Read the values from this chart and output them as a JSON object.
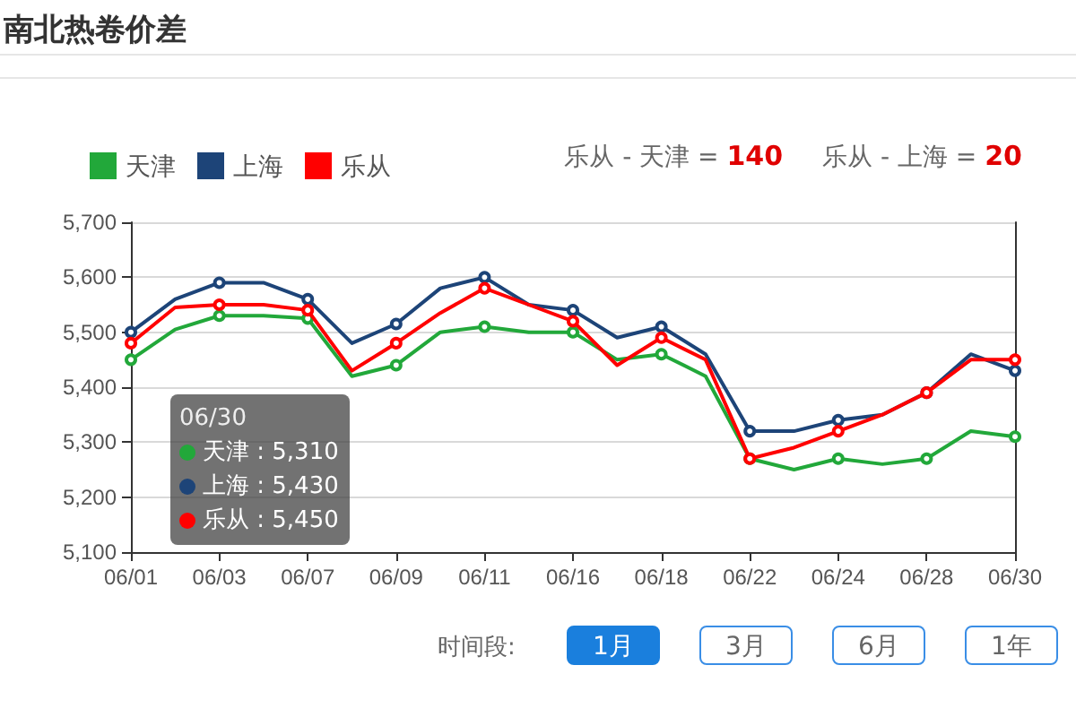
{
  "chart_data": {
    "type": "line",
    "title": "南北热卷价差",
    "categories": [
      "06/01",
      null,
      "06/03",
      null,
      "06/07",
      null,
      "06/09",
      null,
      "06/11",
      null,
      "06/16",
      null,
      "06/18",
      null,
      "06/22",
      null,
      "06/24",
      null,
      "06/28",
      null,
      "06/30"
    ],
    "series": [
      {
        "name": "天津",
        "color": "#22a83a",
        "values": [
          5450,
          5505,
          5530,
          5530,
          5525,
          5420,
          5440,
          5500,
          5510,
          5500,
          5500,
          5450,
          5460,
          5420,
          5270,
          5250,
          5270,
          5260,
          5270,
          5320,
          5310
        ]
      },
      {
        "name": "上海",
        "color": "#1d4478",
        "values": [
          5500,
          5560,
          5590,
          5590,
          5560,
          5480,
          5515,
          5580,
          5600,
          5550,
          5540,
          5490,
          5510,
          5460,
          5320,
          5320,
          5340,
          5350,
          5390,
          5460,
          5430
        ]
      },
      {
        "name": "乐从",
        "color": "#ff0000",
        "values": [
          5480,
          5545,
          5550,
          5550,
          5540,
          5430,
          5480,
          5535,
          5580,
          5550,
          5520,
          5440,
          5490,
          5450,
          5270,
          5290,
          5320,
          5350,
          5390,
          5450,
          5450
        ]
      }
    ],
    "ylim": [
      5100,
      5700
    ],
    "yticks": [
      {
        "value": 5100,
        "label": "5,100"
      },
      {
        "value": 5200,
        "label": "5,200"
      },
      {
        "value": 5300,
        "label": "5,300"
      },
      {
        "value": 5400,
        "label": "5,400"
      },
      {
        "value": 5500,
        "label": "5,500"
      },
      {
        "value": 5600,
        "label": "5,600"
      },
      {
        "value": 5700,
        "label": "5,700"
      }
    ],
    "grid": "y",
    "legend": "top left",
    "marker": "circle",
    "line_style": "solid",
    "annotations": [
      "乐从 - 天津 = 140",
      "乐从 - 上海 = 20",
      "06/30",
      "天津 : 5,310",
      "上海 : 5,430",
      "乐从 : 5,450",
      "时间段:",
      "1月",
      "3月",
      "6月",
      "1年"
    ]
  }
}
